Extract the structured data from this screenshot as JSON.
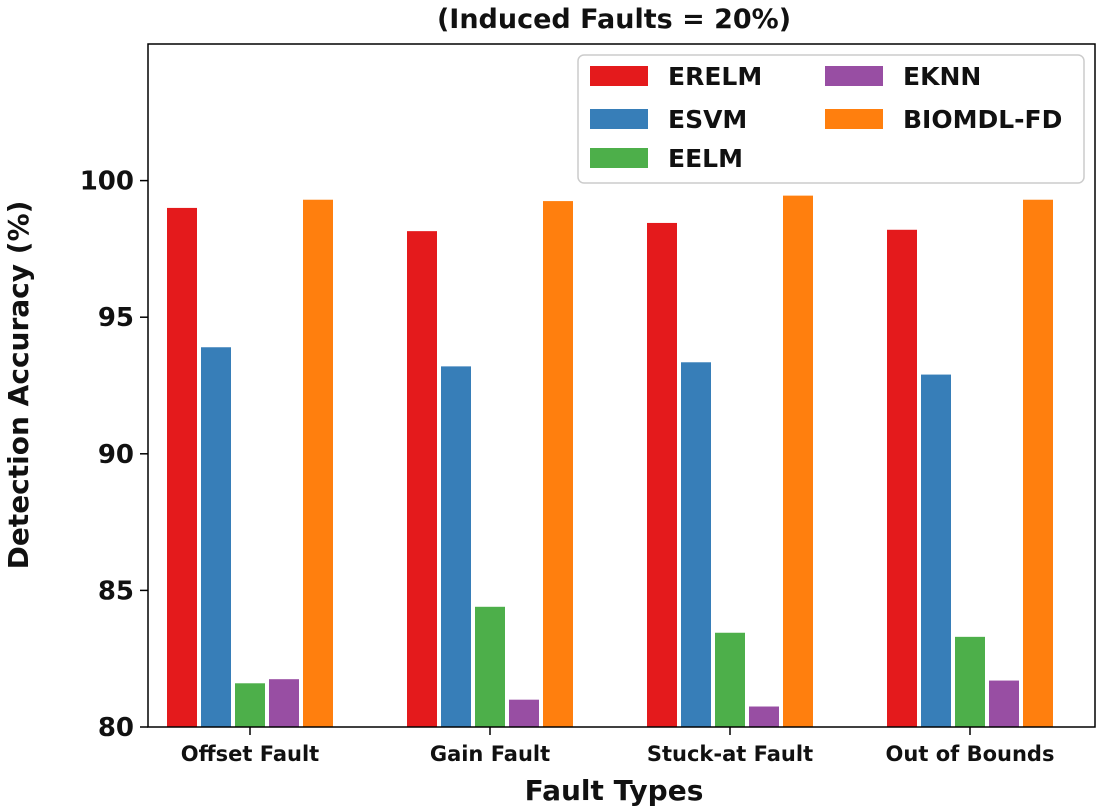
{
  "chart_data": {
    "type": "bar",
    "title": "(Induced Faults = 20%)",
    "xlabel": "Fault Types",
    "ylabel": "Detection Accuracy (%)",
    "categories": [
      "Offset Fault",
      "Gain Fault",
      "Stuck-at Fault",
      "Out of Bounds"
    ],
    "ylim": [
      80,
      105
    ],
    "yticks": [
      80,
      85,
      90,
      95,
      100
    ],
    "grid": false,
    "legend_position": "top-right",
    "series": [
      {
        "name": "ERELM",
        "color": "#e41a1c",
        "values": [
          99.0,
          98.15,
          98.45,
          98.2
        ]
      },
      {
        "name": "ESVM",
        "color": "#377eb8",
        "values": [
          93.9,
          93.2,
          93.35,
          92.9
        ]
      },
      {
        "name": "EELM",
        "color": "#4daf4a",
        "values": [
          81.6,
          84.4,
          83.45,
          83.3
        ]
      },
      {
        "name": "EKNN",
        "color": "#984ea3",
        "values": [
          81.75,
          81.0,
          80.75,
          81.7
        ]
      },
      {
        "name": "BIOMDL-FD",
        "color": "#ff7f0e",
        "values": [
          99.3,
          99.25,
          99.45,
          99.3
        ]
      }
    ]
  }
}
